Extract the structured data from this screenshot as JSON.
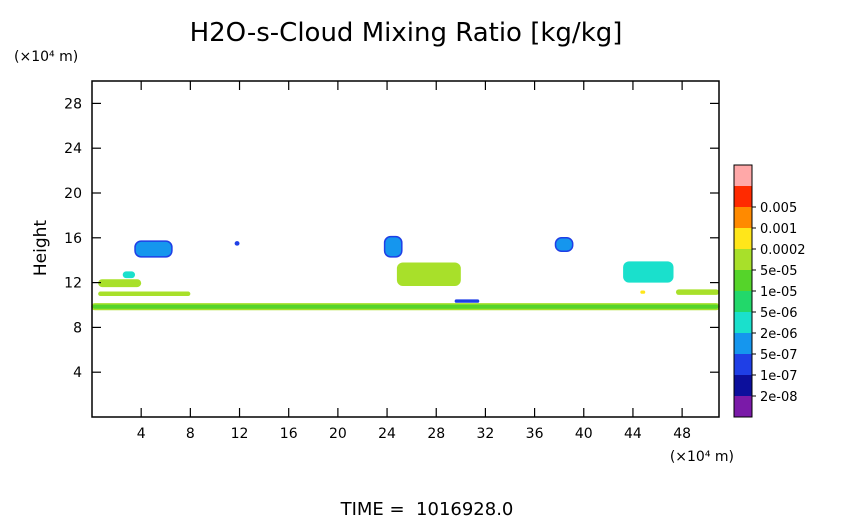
{
  "chart_data": {
    "type": "heatmap",
    "title": "H2O-s-Cloud Mixing Ratio [kg/kg]",
    "ylabel": "Height",
    "yunit": "(×10⁴ m)",
    "xunit": "(×10⁴ m)",
    "footer": "TIME =  1016928.0",
    "xlim": [
      0,
      51
    ],
    "ylim": [
      0,
      30
    ],
    "xticks": [
      4,
      8,
      12,
      16,
      20,
      24,
      28,
      32,
      36,
      40,
      44,
      48
    ],
    "yticks": [
      4,
      8,
      12,
      16,
      20,
      24,
      28
    ],
    "colorbar": [
      {
        "label": "",
        "color": "#7a1aa8"
      },
      {
        "label": "2e-08",
        "color": "#0c0f9c"
      },
      {
        "label": "1e-07",
        "color": "#1f3fe6"
      },
      {
        "label": "5e-07",
        "color": "#1596ee"
      },
      {
        "label": "2e-06",
        "color": "#1ae0cc"
      },
      {
        "label": "5e-06",
        "color": "#22d86a"
      },
      {
        "label": "1e-05",
        "color": "#55d42a"
      },
      {
        "label": "5e-05",
        "color": "#a8e02a"
      },
      {
        "label": "0.0002",
        "color": "#ffe61a"
      },
      {
        "label": "0.001",
        "color": "#ff8a00"
      },
      {
        "label": "0.005",
        "color": "#ff2a00"
      },
      {
        "label": "",
        "color": "#ffa8a8"
      }
    ],
    "regions": [
      {
        "x": [
          0,
          51
        ],
        "y": [
          9.6,
          10.1
        ],
        "level": "1e-05",
        "edge": "5e-05"
      },
      {
        "x": [
          0.5,
          8
        ],
        "y": [
          10.8,
          11.2
        ],
        "level": "5e-05"
      },
      {
        "x": [
          0.5,
          4
        ],
        "y": [
          11.6,
          12.3
        ],
        "level": "5e-05"
      },
      {
        "x": [
          2.5,
          3.5
        ],
        "y": [
          12.4,
          13.0
        ],
        "level": "2e-06"
      },
      {
        "x": [
          3.5,
          6.5
        ],
        "y": [
          14.3,
          15.7
        ],
        "level": "5e-07",
        "edge": "1e-07"
      },
      {
        "x": [
          11.6,
          12.0
        ],
        "y": [
          15.3,
          15.7
        ],
        "level": "1e-07"
      },
      {
        "x": [
          23.8,
          25.2
        ],
        "y": [
          14.3,
          16.1
        ],
        "level": "5e-07",
        "edge": "1e-07"
      },
      {
        "x": [
          24.8,
          30.0
        ],
        "y": [
          11.7,
          13.8
        ],
        "level": "5e-05"
      },
      {
        "x": [
          29.5,
          31.5
        ],
        "y": [
          10.2,
          10.5
        ],
        "level": "1e-07"
      },
      {
        "x": [
          37.7,
          39.1
        ],
        "y": [
          14.8,
          16.0
        ],
        "level": "5e-07",
        "edge": "1e-07"
      },
      {
        "x": [
          43.2,
          47.3
        ],
        "y": [
          12.0,
          13.9
        ],
        "level": "2e-06"
      },
      {
        "x": [
          44.6,
          45.0
        ],
        "y": [
          11.0,
          11.3
        ],
        "level": "0.0002"
      },
      {
        "x": [
          47.5,
          51.0
        ],
        "y": [
          10.9,
          11.4
        ],
        "level": "5e-05"
      }
    ]
  }
}
